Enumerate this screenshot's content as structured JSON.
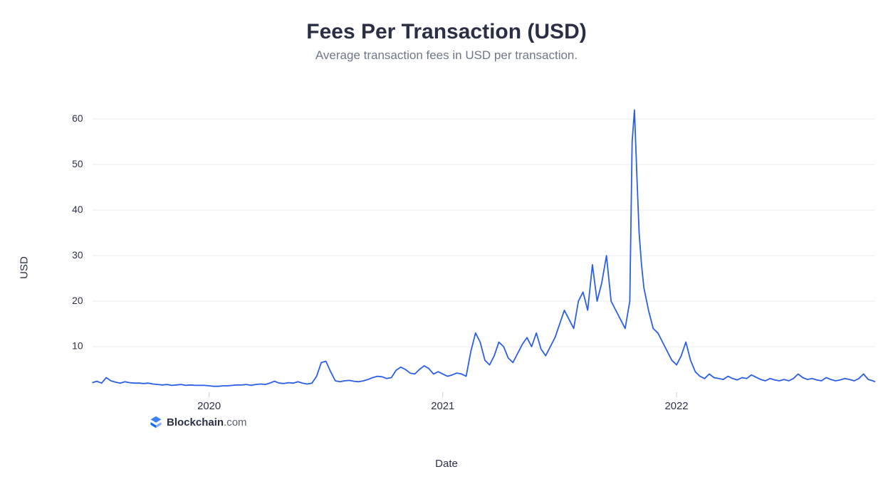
{
  "chart": {
    "type": "line",
    "title": "Fees Per Transaction (USD)",
    "subtitle": "Average transaction fees in USD per transaction.",
    "y_axis": {
      "label": "USD",
      "ticks": [
        10,
        20,
        30,
        40,
        50,
        60
      ],
      "lim": [
        0,
        68
      ]
    },
    "x_axis": {
      "label": "Date",
      "ticks": [
        "2020",
        "2021",
        "2022"
      ],
      "t_range": [
        0,
        3.35
      ]
    },
    "line_color": "#2a5ee8",
    "grid_color": "#e8ebef",
    "background_color": "#ffffff",
    "title_color": "#2a2f45",
    "subtitle_color": "#6e7889",
    "tick_label_color": "#2a2f45",
    "title_fontsize": 30,
    "subtitle_fontsize": 17,
    "tick_fontsize": 14,
    "watermark": {
      "brand": "Blockchain",
      "suffix": ".com"
    },
    "series": [
      [
        0.0,
        2.1
      ],
      [
        0.02,
        2.4
      ],
      [
        0.04,
        2.0
      ],
      [
        0.06,
        3.2
      ],
      [
        0.08,
        2.5
      ],
      [
        0.1,
        2.2
      ],
      [
        0.12,
        2.0
      ],
      [
        0.14,
        2.3
      ],
      [
        0.16,
        2.1
      ],
      [
        0.18,
        2.0
      ],
      [
        0.2,
        2.0
      ],
      [
        0.22,
        1.9
      ],
      [
        0.24,
        2.0
      ],
      [
        0.26,
        1.8
      ],
      [
        0.28,
        1.7
      ],
      [
        0.3,
        1.6
      ],
      [
        0.32,
        1.7
      ],
      [
        0.34,
        1.5
      ],
      [
        0.36,
        1.6
      ],
      [
        0.38,
        1.7
      ],
      [
        0.4,
        1.5
      ],
      [
        0.42,
        1.6
      ],
      [
        0.44,
        1.5
      ],
      [
        0.46,
        1.5
      ],
      [
        0.48,
        1.5
      ],
      [
        0.5,
        1.4
      ],
      [
        0.52,
        1.3
      ],
      [
        0.54,
        1.3
      ],
      [
        0.56,
        1.4
      ],
      [
        0.58,
        1.4
      ],
      [
        0.6,
        1.5
      ],
      [
        0.62,
        1.6
      ],
      [
        0.64,
        1.6
      ],
      [
        0.66,
        1.7
      ],
      [
        0.68,
        1.5
      ],
      [
        0.7,
        1.7
      ],
      [
        0.72,
        1.8
      ],
      [
        0.74,
        1.7
      ],
      [
        0.76,
        2.0
      ],
      [
        0.78,
        2.4
      ],
      [
        0.8,
        2.0
      ],
      [
        0.82,
        1.9
      ],
      [
        0.84,
        2.1
      ],
      [
        0.86,
        2.0
      ],
      [
        0.88,
        2.3
      ],
      [
        0.9,
        2.0
      ],
      [
        0.92,
        1.8
      ],
      [
        0.94,
        2.0
      ],
      [
        0.96,
        3.5
      ],
      [
        0.98,
        6.5
      ],
      [
        1.0,
        6.8
      ],
      [
        1.02,
        4.5
      ],
      [
        1.04,
        2.5
      ],
      [
        1.06,
        2.3
      ],
      [
        1.08,
        2.5
      ],
      [
        1.1,
        2.6
      ],
      [
        1.12,
        2.4
      ],
      [
        1.14,
        2.3
      ],
      [
        1.16,
        2.5
      ],
      [
        1.18,
        2.8
      ],
      [
        1.2,
        3.2
      ],
      [
        1.22,
        3.5
      ],
      [
        1.24,
        3.4
      ],
      [
        1.26,
        3.0
      ],
      [
        1.28,
        3.2
      ],
      [
        1.3,
        4.8
      ],
      [
        1.32,
        5.5
      ],
      [
        1.34,
        5.0
      ],
      [
        1.36,
        4.2
      ],
      [
        1.38,
        4.0
      ],
      [
        1.4,
        5.0
      ],
      [
        1.42,
        5.8
      ],
      [
        1.44,
        5.2
      ],
      [
        1.46,
        4.0
      ],
      [
        1.48,
        4.5
      ],
      [
        1.5,
        4.0
      ],
      [
        1.52,
        3.5
      ],
      [
        1.54,
        3.8
      ],
      [
        1.56,
        4.2
      ],
      [
        1.58,
        4.0
      ],
      [
        1.6,
        3.5
      ],
      [
        1.62,
        9.0
      ],
      [
        1.64,
        13.0
      ],
      [
        1.66,
        11.0
      ],
      [
        1.68,
        7.0
      ],
      [
        1.7,
        6.0
      ],
      [
        1.72,
        8.0
      ],
      [
        1.74,
        11.0
      ],
      [
        1.76,
        10.0
      ],
      [
        1.78,
        7.5
      ],
      [
        1.8,
        6.5
      ],
      [
        1.82,
        8.5
      ],
      [
        1.84,
        10.5
      ],
      [
        1.86,
        12.0
      ],
      [
        1.88,
        10.0
      ],
      [
        1.9,
        13.0
      ],
      [
        1.92,
        9.5
      ],
      [
        1.94,
        8.0
      ],
      [
        1.96,
        10.0
      ],
      [
        1.98,
        12.0
      ],
      [
        2.0,
        15.0
      ],
      [
        2.02,
        18.0
      ],
      [
        2.04,
        16.0
      ],
      [
        2.06,
        14.0
      ],
      [
        2.08,
        20.0
      ],
      [
        2.1,
        22.0
      ],
      [
        2.12,
        18.0
      ],
      [
        2.14,
        28.0
      ],
      [
        2.16,
        20.0
      ],
      [
        2.18,
        24.0
      ],
      [
        2.2,
        30.0
      ],
      [
        2.21,
        25.0
      ],
      [
        2.22,
        20.0
      ],
      [
        2.24,
        18.0
      ],
      [
        2.26,
        16.0
      ],
      [
        2.28,
        14.0
      ],
      [
        2.3,
        20.0
      ],
      [
        2.31,
        55.0
      ],
      [
        2.32,
        62.0
      ],
      [
        2.33,
        48.0
      ],
      [
        2.34,
        35.0
      ],
      [
        2.35,
        28.0
      ],
      [
        2.36,
        23.0
      ],
      [
        2.38,
        18.0
      ],
      [
        2.4,
        14.0
      ],
      [
        2.42,
        13.0
      ],
      [
        2.44,
        11.0
      ],
      [
        2.46,
        9.0
      ],
      [
        2.48,
        7.0
      ],
      [
        2.5,
        6.0
      ],
      [
        2.52,
        8.0
      ],
      [
        2.54,
        11.0
      ],
      [
        2.56,
        7.0
      ],
      [
        2.58,
        4.5
      ],
      [
        2.6,
        3.5
      ],
      [
        2.62,
        3.0
      ],
      [
        2.64,
        4.0
      ],
      [
        2.66,
        3.2
      ],
      [
        2.68,
        3.0
      ],
      [
        2.7,
        2.8
      ],
      [
        2.72,
        3.5
      ],
      [
        2.74,
        3.0
      ],
      [
        2.76,
        2.7
      ],
      [
        2.78,
        3.2
      ],
      [
        2.8,
        3.0
      ],
      [
        2.82,
        3.8
      ],
      [
        2.84,
        3.3
      ],
      [
        2.86,
        2.8
      ],
      [
        2.88,
        2.5
      ],
      [
        2.9,
        3.0
      ],
      [
        2.92,
        2.7
      ],
      [
        2.94,
        2.5
      ],
      [
        2.96,
        2.8
      ],
      [
        2.98,
        2.5
      ],
      [
        3.0,
        3.0
      ],
      [
        3.02,
        4.0
      ],
      [
        3.04,
        3.2
      ],
      [
        3.06,
        2.8
      ],
      [
        3.08,
        3.0
      ],
      [
        3.1,
        2.7
      ],
      [
        3.12,
        2.5
      ],
      [
        3.14,
        3.2
      ],
      [
        3.16,
        2.8
      ],
      [
        3.18,
        2.5
      ],
      [
        3.2,
        2.7
      ],
      [
        3.22,
        3.0
      ],
      [
        3.24,
        2.8
      ],
      [
        3.26,
        2.5
      ],
      [
        3.28,
        3.0
      ],
      [
        3.3,
        4.0
      ],
      [
        3.32,
        2.8
      ],
      [
        3.34,
        2.5
      ],
      [
        3.35,
        2.3
      ]
    ]
  }
}
